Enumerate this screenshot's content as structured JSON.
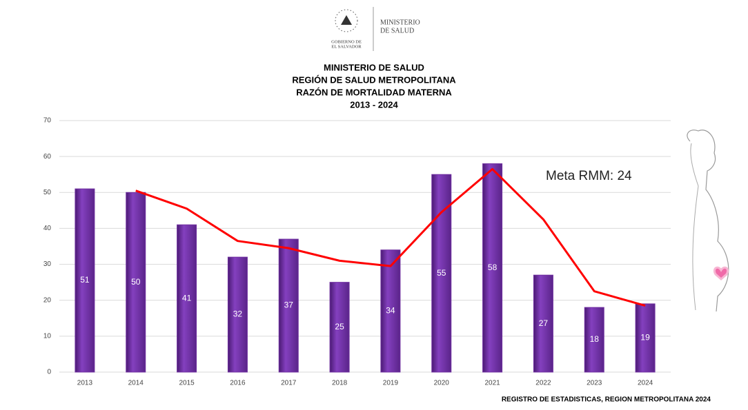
{
  "logo": {
    "government": [
      "GOBIERNO DE",
      "EL SALVADOR"
    ],
    "ministry": [
      "MINISTERIO",
      "DE SALUD"
    ]
  },
  "chart_data": {
    "type": "bar",
    "title": [
      "MINISTERIO DE SALUD",
      "REGIÓN DE SALUD METROPOLITANA",
      "RAZÓN DE MORTALIDAD MATERNA",
      "2013 - 2024"
    ],
    "categories": [
      "2013",
      "2014",
      "2015",
      "2016",
      "2017",
      "2018",
      "2019",
      "2020",
      "2021",
      "2022",
      "2023",
      "2024"
    ],
    "series": [
      {
        "type": "bar",
        "color": "#7030a0",
        "values": [
          51,
          50,
          41,
          32,
          37,
          25,
          34,
          55,
          58,
          27,
          18,
          19
        ]
      },
      {
        "type": "line",
        "color": "#ff0000",
        "values": [
          null,
          50.5,
          45.5,
          36.5,
          34.5,
          31,
          29.5,
          44.5,
          56.5,
          42.5,
          22.5,
          18.5
        ]
      }
    ],
    "ylim": [
      0,
      70
    ],
    "yticks": [
      0,
      10,
      20,
      30,
      40,
      50,
      60,
      70
    ],
    "grid": true,
    "annotation": "Meta RMM: 24",
    "source": "REGISTRO DE ESTADISTICAS, REGION METROPOLITANA 2024"
  }
}
